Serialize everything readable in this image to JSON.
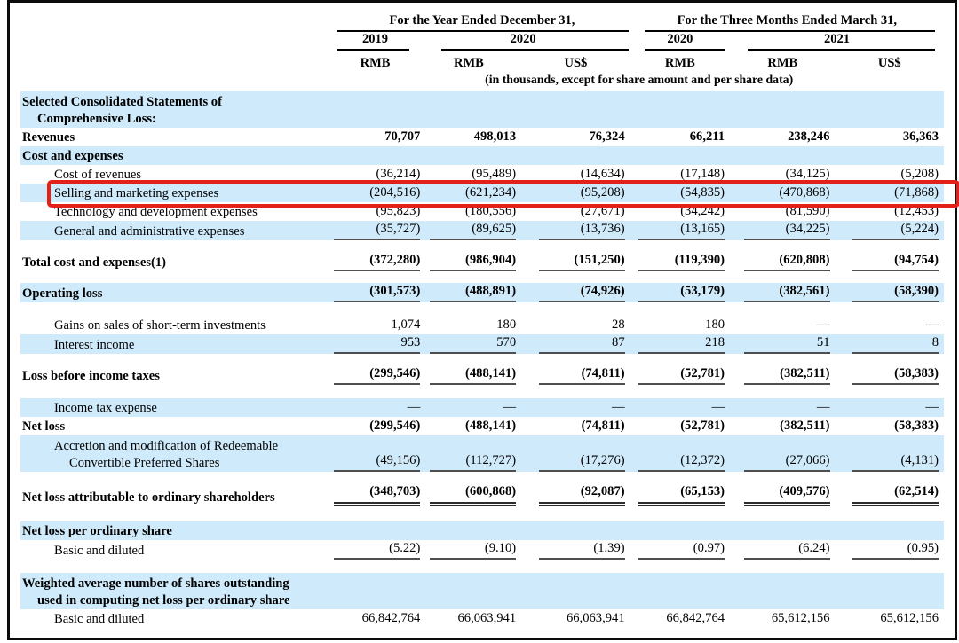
{
  "colors": {
    "row_shade": "#cfeafa",
    "highlight_border": "#e32119",
    "text": "#000000"
  },
  "header": {
    "period_groups": [
      {
        "label": "For the Year Ended December 31,",
        "span": 3
      },
      {
        "label": "For the Three Months Ended March 31,",
        "span": 3
      }
    ],
    "years": [
      {
        "label": "2019",
        "span": 1
      },
      {
        "label": "2020",
        "span": 2
      },
      {
        "label": "2020",
        "span": 1
      },
      {
        "label": "2021",
        "span": 2
      }
    ],
    "currencies": [
      "RMB",
      "RMB",
      "US$",
      "RMB",
      "RMB",
      "US$"
    ],
    "note": "(in thousands, except for share amount and per share data)"
  },
  "table": {
    "rows": [
      {
        "type": "section",
        "label": "Selected Consolidated Statements of",
        "label2": "Comprehensive Loss:",
        "bold": true,
        "shaded": true
      },
      {
        "type": "data",
        "label": "Revenues",
        "bold": true,
        "values": [
          "70,707",
          "498,013",
          "76,324",
          "66,211",
          "238,246",
          "36,363"
        ]
      },
      {
        "type": "section",
        "label": "Cost and expenses",
        "bold": true,
        "shaded": true
      },
      {
        "type": "data",
        "label": "Cost of revenues",
        "indent": true,
        "values": [
          "(36,214)",
          "(95,489)",
          "(14,634)",
          "(17,148)",
          "(34,125)",
          "(5,208)"
        ]
      },
      {
        "type": "data",
        "label": "Selling and marketing expenses",
        "indent": true,
        "shaded": true,
        "highlight": true,
        "values": [
          "(204,516)",
          "(621,234)",
          "(95,208)",
          "(54,835)",
          "(470,868)",
          "(71,868)"
        ]
      },
      {
        "type": "data",
        "label": "Technology and development expenses",
        "indent": true,
        "values": [
          "(95,823)",
          "(180,556)",
          "(27,671)",
          "(34,242)",
          "(81,590)",
          "(12,453)"
        ]
      },
      {
        "type": "data",
        "label": "General and administrative expenses",
        "indent": true,
        "shaded": true,
        "underline": "single",
        "values": [
          "(35,727)",
          "(89,625)",
          "(13,736)",
          "(13,165)",
          "(34,225)",
          "(5,224)"
        ]
      },
      {
        "type": "spacer",
        "height": 13
      },
      {
        "type": "data",
        "label": "Total cost and expenses(1)",
        "bold": true,
        "underline": "single",
        "values": [
          "(372,280)",
          "(986,904)",
          "(151,250)",
          "(119,390)",
          "(620,808)",
          "(94,754)"
        ]
      },
      {
        "type": "spacer",
        "height": 13
      },
      {
        "type": "data",
        "label": "Operating loss",
        "bold": true,
        "shaded": true,
        "underline": "single",
        "values": [
          "(301,573)",
          "(488,891)",
          "(74,926)",
          "(53,179)",
          "(382,561)",
          "(58,390)"
        ]
      },
      {
        "type": "spacer",
        "height": 15
      },
      {
        "type": "data",
        "label": "Gains on sales of short-term investments",
        "indent": true,
        "values": [
          "1,074",
          "180",
          "28",
          "180",
          "—",
          "—"
        ]
      },
      {
        "type": "data",
        "label": "Interest income",
        "indent": true,
        "shaded": true,
        "underline": "single",
        "values": [
          "953",
          "570",
          "87",
          "218",
          "51",
          "8"
        ]
      },
      {
        "type": "spacer",
        "height": 13
      },
      {
        "type": "data",
        "label": "Loss before income taxes",
        "bold": true,
        "underline": "single",
        "values": [
          "(299,546)",
          "(488,141)",
          "(74,811)",
          "(52,781)",
          "(382,511)",
          "(58,383)"
        ]
      },
      {
        "type": "spacer",
        "height": 15
      },
      {
        "type": "data",
        "label": "Income tax expense",
        "indent": true,
        "shaded": true,
        "values": [
          "—",
          "—",
          "—",
          "—",
          "—",
          "—"
        ]
      },
      {
        "type": "data",
        "label": "Net loss",
        "bold": true,
        "values": [
          "(299,546)",
          "(488,141)",
          "(74,811)",
          "(52,781)",
          "(382,511)",
          "(58,383)"
        ]
      },
      {
        "type": "data",
        "label": "Accretion and modification of Redeemable",
        "label2": "Convertible Preferred Shares",
        "indent": true,
        "shaded": true,
        "underline": "single",
        "values": [
          "(49,156)",
          "(112,727)",
          "(17,276)",
          "(12,372)",
          "(27,066)",
          "(4,131)"
        ]
      },
      {
        "type": "spacer",
        "height": 13
      },
      {
        "type": "data",
        "label": "Net loss attributable to ordinary shareholders",
        "bold": true,
        "underline": "double",
        "values": [
          "(348,703)",
          "(600,868)",
          "(92,087)",
          "(65,153)",
          "(409,576)",
          "(62,514)"
        ]
      },
      {
        "type": "spacer",
        "height": 17
      },
      {
        "type": "section",
        "label": "Net loss per ordinary share",
        "bold": true,
        "shaded": true
      },
      {
        "type": "data",
        "label": "Basic and diluted",
        "indent": true,
        "underline": "single",
        "values": [
          "(5.22)",
          "(9.10)",
          "(1.39)",
          "(0.97)",
          "(6.24)",
          "(0.95)"
        ]
      },
      {
        "type": "spacer",
        "height": 15
      },
      {
        "type": "section",
        "label": "Weighted average number of shares outstanding",
        "label2": "used in computing net loss per ordinary share",
        "bold": true,
        "shaded": true
      },
      {
        "type": "data",
        "label": "Basic and diluted",
        "indent": true,
        "values": [
          "66,842,764",
          "66,063,941",
          "66,063,941",
          "66,842,764",
          "65,612,156",
          "65,612,156"
        ]
      }
    ]
  }
}
